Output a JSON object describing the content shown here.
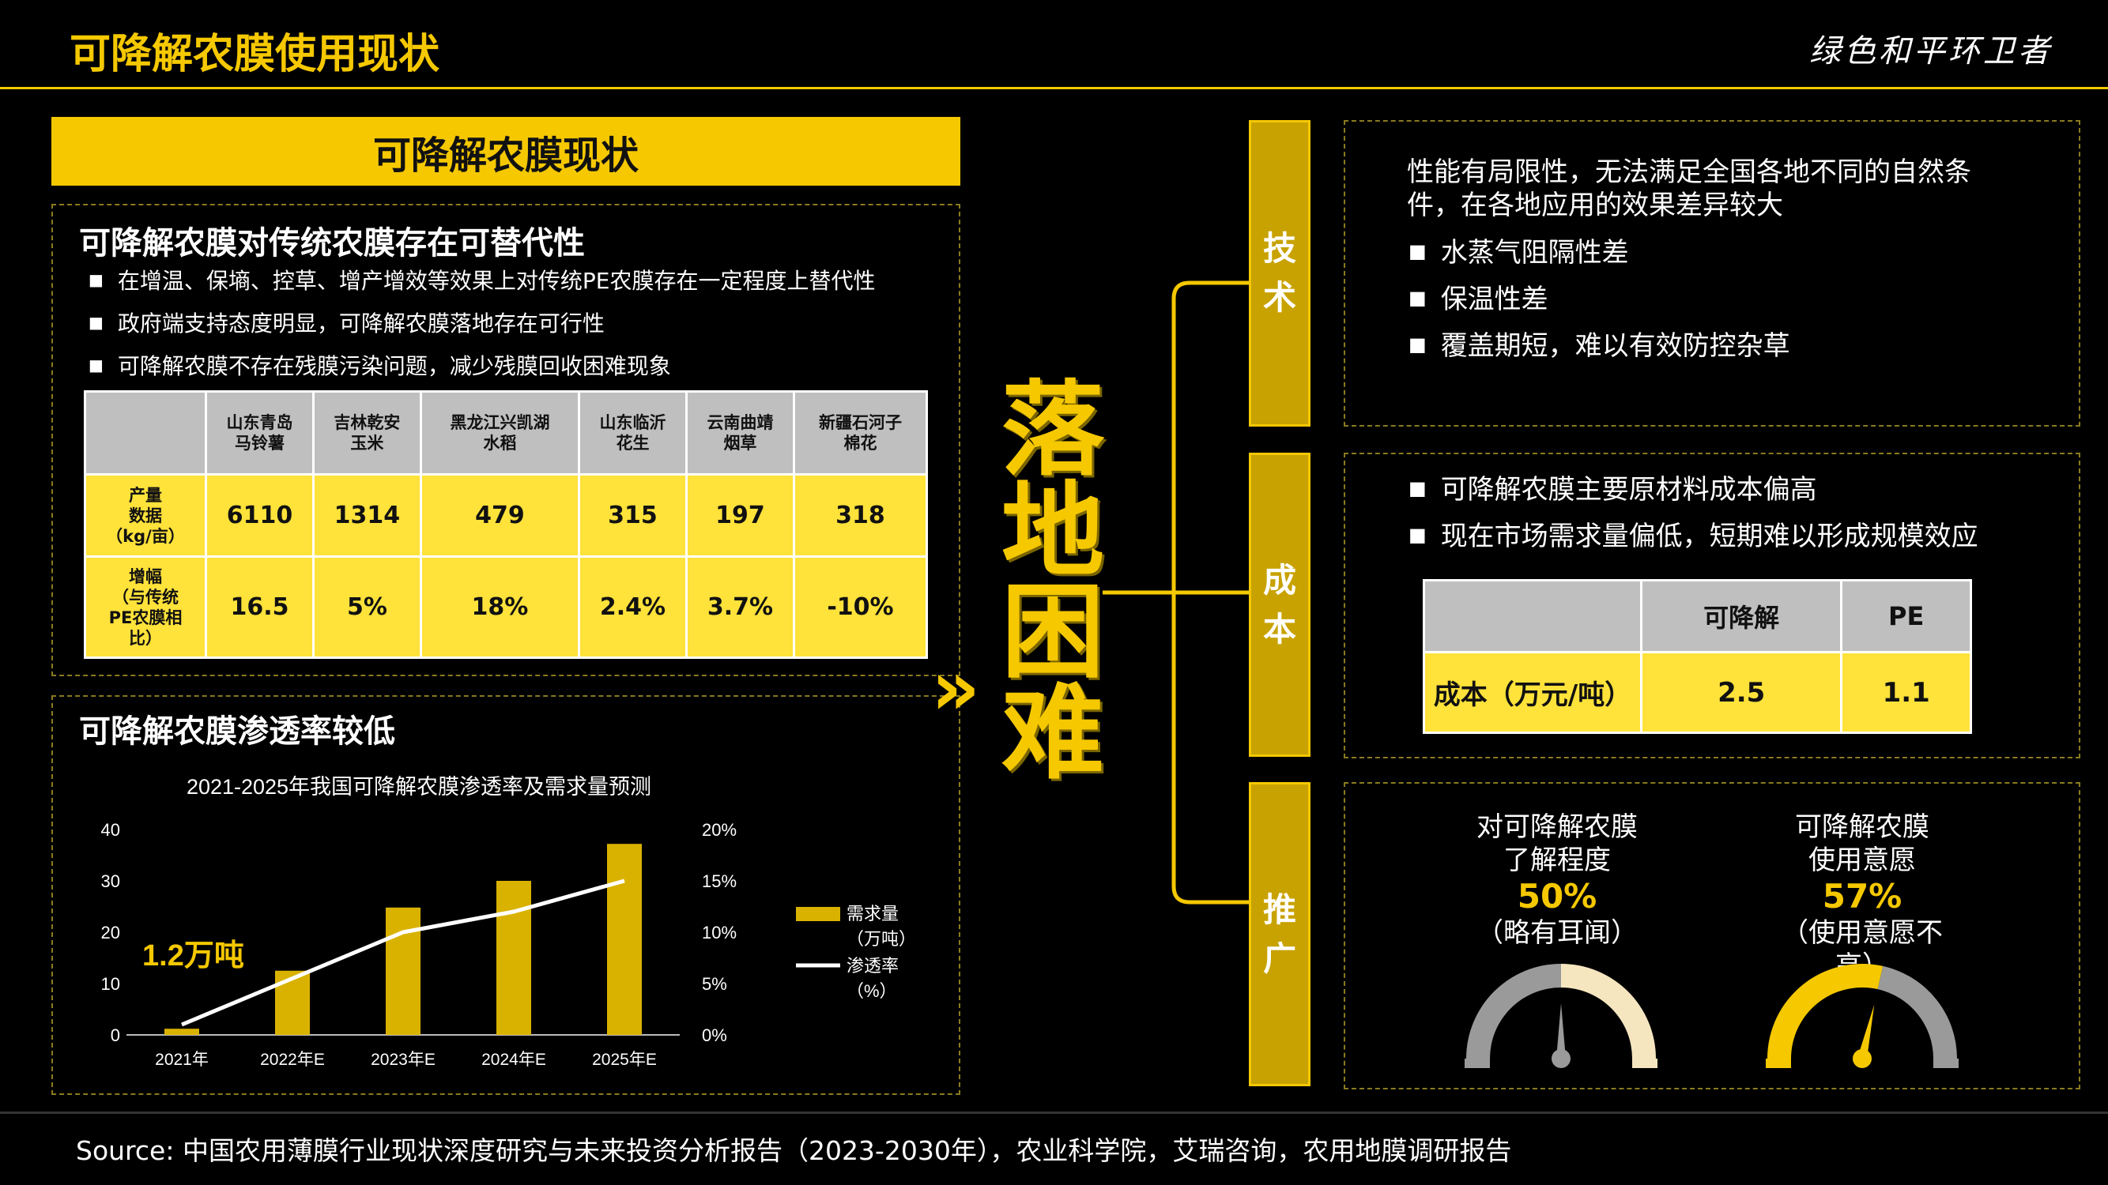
{
  "header": {
    "title": "可降解农膜使用现状",
    "brand": "绿色和平环卫者"
  },
  "left": {
    "section_title": "可降解农膜现状",
    "box1": {
      "title": "可降解农膜对传统农膜存在可替代性",
      "bullets": [
        "在增温、保墒、控草、增产增效等效果上对传统PE农膜存在一定程度上替代性",
        "政府端支持态度明显，可降解农膜落地存在可行性",
        "可降解农膜不存在残膜污染问题，减少残膜回收困难现象"
      ],
      "table": {
        "headers": [
          "",
          "山东青岛\n马铃薯",
          "吉林乾安\n玉米",
          "黑龙江兴凯湖\n水稻",
          "山东临沂\n花生",
          "云南曲靖\n烟草",
          "新疆石河子\n棉花"
        ],
        "rows": [
          {
            "label": "产量\n数据\n（kg/亩）",
            "cells": [
              "6110",
              "1314",
              "479",
              "315",
              "197",
              "318"
            ]
          },
          {
            "label": "增幅\n（与传统\nPE农膜相\n比）",
            "cells": [
              "16.5",
              "5%",
              "18%",
              "2.4%",
              "3.7%",
              "-10%"
            ]
          }
        ]
      }
    },
    "box2": {
      "title": "可降解农膜渗透率较低"
    }
  },
  "chart_data": {
    "type": "bar",
    "title": "2021-2025年我国可降解农膜渗透率及需求量预测",
    "categories": [
      "2021年",
      "2022年E",
      "2023年E",
      "2024年E",
      "2025年E"
    ],
    "series": [
      {
        "name": "需求量\n（万吨）",
        "type": "bar",
        "axis": "left",
        "values": [
          1.2,
          12.5,
          24.8,
          30,
          37.2
        ]
      },
      {
        "name": "渗透率\n（%）",
        "type": "line",
        "axis": "right",
        "values": [
          1,
          5.5,
          10,
          12,
          15
        ]
      }
    ],
    "y_left": {
      "min": 0,
      "max": 40,
      "ticks": [
        "0",
        "10",
        "20",
        "30",
        "40"
      ]
    },
    "y_right": {
      "min": 0,
      "max": 20,
      "ticks": [
        "0%",
        "5%",
        "10%",
        "15%",
        "20%"
      ]
    },
    "annotation": "1.2万吨",
    "grid": false,
    "legend": "right",
    "colors": {
      "bar": "#D9B200",
      "line": "#FFFFFF"
    }
  },
  "center": {
    "vertical_title": "落地困难",
    "chevron": "»"
  },
  "right": {
    "categories": [
      {
        "label": "技术"
      },
      {
        "label": "成本"
      },
      {
        "label": "推广"
      }
    ],
    "tech": {
      "intro": "性能有局限性，无法满足全国各地不同的自然条件，在各地应用的效果差异较大",
      "bullets": [
        "水蒸气阻隔性差",
        "保温性差",
        "覆盖期短，难以有效防控杂草"
      ]
    },
    "cost": {
      "bullets": [
        "可降解农膜主要原材料成本偏高",
        "现在市场需求量偏低，短期难以形成规模效应"
      ],
      "table": {
        "headers": [
          "",
          "可降解",
          "PE"
        ],
        "row": {
          "label": "成本（万元/吨）",
          "cells": [
            "2.5",
            "1.1"
          ]
        }
      }
    },
    "promo": {
      "gauges": [
        {
          "label": "对可降解农膜\n了解程度",
          "percent": "50%",
          "value": 0.5,
          "note": "（略有耳闻）"
        },
        {
          "label": "可降解农膜\n使用意愿",
          "percent": "57%",
          "value": 0.57,
          "note": "（使用意愿不\n高）"
        }
      ]
    }
  },
  "footer": {
    "source": "Source:  中国农用薄膜行业现状深度研究与未来投资分析报告（2023-2030年），农业科学院，艾瑞咨询，农用地膜调研报告"
  },
  "colors": {
    "accent": "#F5C800",
    "table_header": "#BFBFBF",
    "table_body": "#FFE23A",
    "gauge_empty": "#9A9A9A",
    "gauge_cream": "#F5E6C0"
  }
}
